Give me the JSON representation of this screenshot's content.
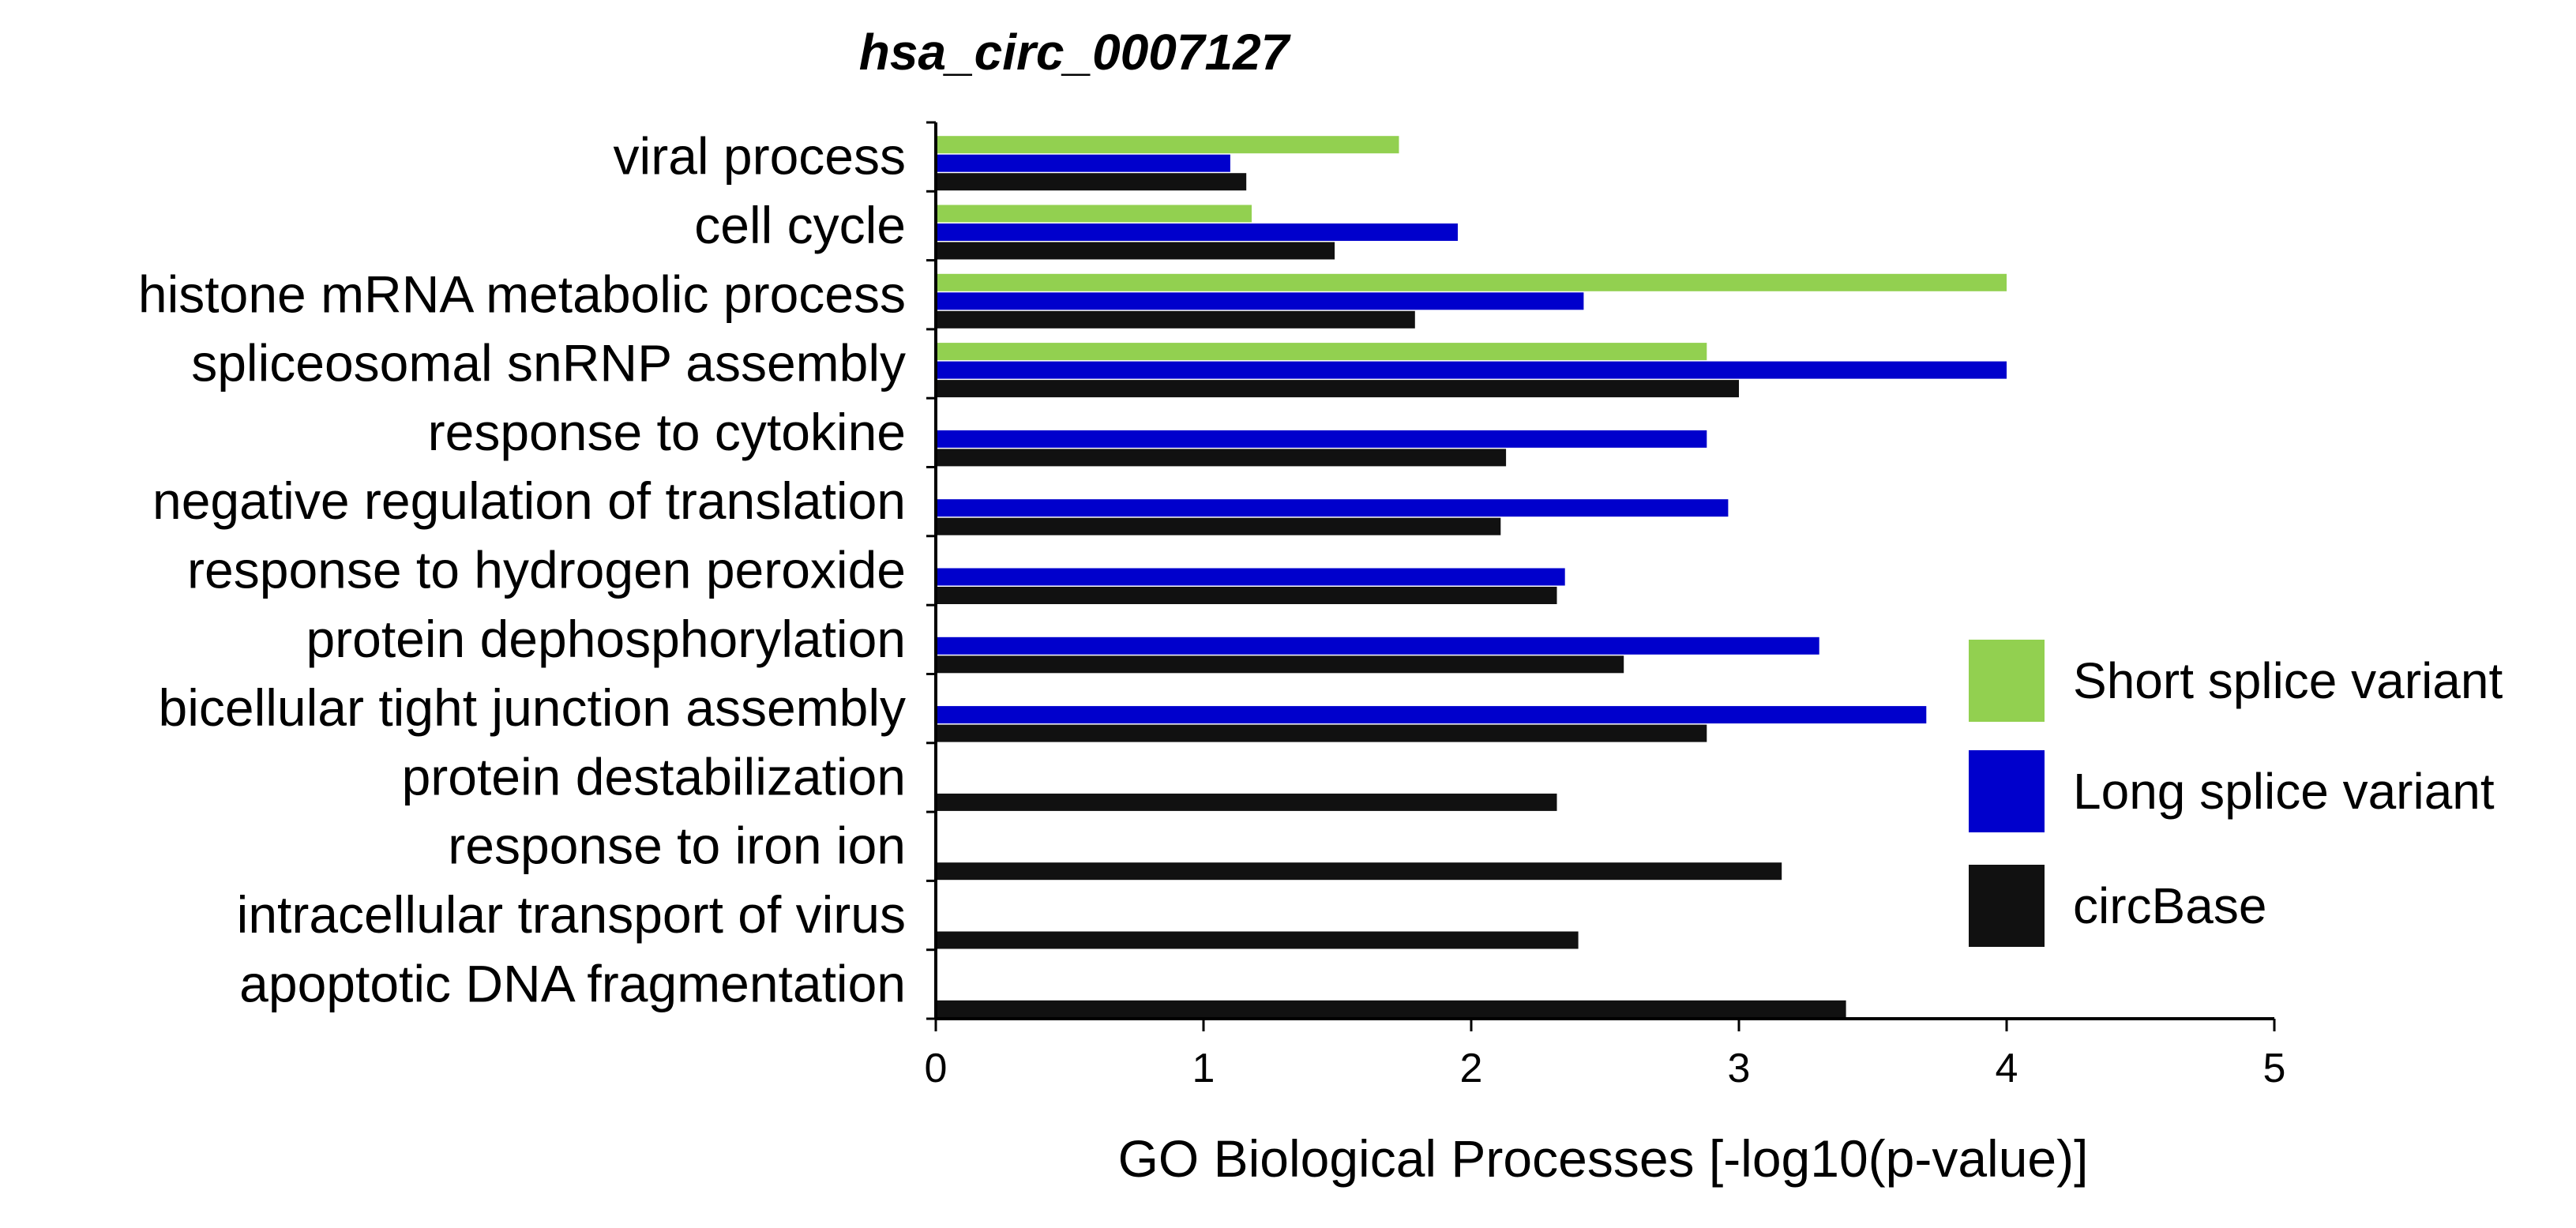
{
  "chart_data": {
    "type": "bar",
    "orientation": "horizontal",
    "title": "hsa_circ_0007127",
    "xlabel": "GO Biological Processes [-log10(p-value)]",
    "ylabel": "",
    "xlim": [
      0,
      5
    ],
    "xticks": [
      "0",
      "1",
      "2",
      "3",
      "4",
      "5"
    ],
    "grid": false,
    "legend_position": "right",
    "categories": [
      "viral process",
      "cell cycle",
      "histone mRNA metabolic process",
      "spliceosomal snRNP assembly",
      "response to cytokine",
      "negative regulation of translation",
      "response to hydrogen peroxide",
      "protein dephosphorylation",
      "bicellular tight junction assembly",
      "protein destabilization",
      "response to iron ion",
      "intracellular transport of virus",
      "apoptotic DNA fragmentation"
    ],
    "series": [
      {
        "name": "Short splice variant",
        "color": "#92D050",
        "values": [
          1.73,
          1.18,
          4.0,
          2.88,
          null,
          null,
          null,
          null,
          null,
          null,
          null,
          null,
          null
        ]
      },
      {
        "name": "Long splice variant",
        "color": "#0000CC",
        "values": [
          1.1,
          1.95,
          2.42,
          4.0,
          2.88,
          2.96,
          2.35,
          3.3,
          3.7,
          null,
          null,
          null,
          null
        ]
      },
      {
        "name": "circBase",
        "color": "#111111",
        "values": [
          1.16,
          1.49,
          1.79,
          3.0,
          2.13,
          2.11,
          2.32,
          2.57,
          2.88,
          2.32,
          3.16,
          2.4,
          3.4
        ]
      }
    ]
  }
}
